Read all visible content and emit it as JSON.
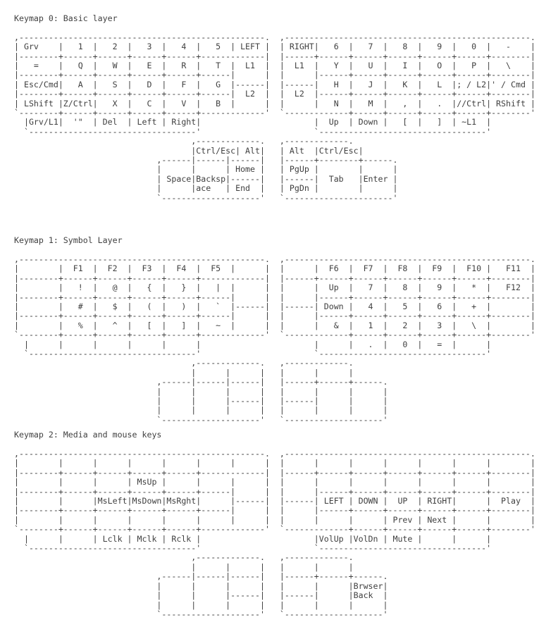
{
  "page": {
    "background_color": "#ffffff",
    "text_color": "#3f3f3f"
  },
  "keymaps": [
    {
      "title": "Keymap 0: Basic layer",
      "art_lines": [
        ",--------------------------------------------------.  ,--------------------------------------------------.",
        "| Grv    |   1  |   2  |   3  |   4  |   5  | LEFT |  | RIGHT|   6  |   7  |   8  |   9  |   0  |   -    |",
        "|--------+------+------+------+------+-------------|  |------+------+------+------+------+------+--------|",
        "|   =    |   Q  |   W  |   E  |   R  |   T  |  L1  |  |  L1  |   Y  |   U  |   I  |   O  |   P  |   \\    |",
        "|--------+------+------+------+------+------|      |  |      |------+------+------+------+------+--------|",
        "| Esc/Cmd|   A  |   S  |   D  |   F  |   G  |------|  |------|   H  |   J  |   K  |   L  |; / L2|' / Cmd |",
        "|--------+------+------+------+------+------|  L2  |  |  L2  |------+------+------+------+------+--------|",
        "| LShift |Z/Ctrl|   X  |   C  |   V  |   B  |      |  |      |   N  |   M  |   ,  |   .  |//Ctrl| RShift |",
        "`--------+------+------+------+------+-------------'  `-------------+------+------+------+------+--------'",
        "  |Grv/L1|  '\"  | Del  | Left | Right|                       |  Up  | Down |   [  |   ]  | ~L1  |",
        "  `----------------------------------'                       `----------------------------------'",
        "                                    ,-------------.   ,-------------.",
        "                                    |Ctrl/Esc| Alt|   | Alt  |Ctrl/Esc|",
        "                             ,------|------|------|   |------+--------+------.",
        "                             |      |      | Home |   | PgUp |        |      |",
        "                             | Space|Backsp|------|   |------|  Tab   |Enter |",
        "                             |      |ace   | End  |   | PgDn |        |      |",
        "                             `--------------------'   `----------------------'"
      ]
    },
    {
      "title": "Keymap 1: Symbol Layer",
      "art_lines": [
        ",--------------------------------------------------.  ,--------------------------------------------------.",
        "|        |  F1  |  F2  |  F3  |  F4  |  F5  |      |  |      |  F6  |  F7  |  F8  |  F9  |  F10 |   F11  |",
        "|--------+------+------+------+------+-------------|  |------+------+------+------+------+------+--------|",
        "|        |   !  |   @  |   {  |   }  |   |  |      |  |      |  Up  |   7  |   8  |   9  |   *  |   F12  |",
        "|--------+------+------+------+------+------|      |  |      |------+------+------+------+------+--------|",
        "|        |   #  |   $  |   (  |   )  |   `  |------|  |------| Down |   4  |   5  |   6  |   +  |        |",
        "|--------+------+------+------+------+------|      |  |      |------+------+------+------+------+--------|",
        "|        |   %  |   ^  |   [  |   ]  |   ~  |      |  |      |   &  |   1  |   2  |   3  |   \\  |        |",
        "`--------+------+------+------+------+-------------'  `-------------+------+------+------+------+--------'",
        "  |      |      |      |      |      |                       |      |   .  |   0  |   =  |      |",
        "  `----------------------------------'                       `----------------------------------'",
        "                                    ,-------------.   ,-------------.",
        "                                    |      |      |   |      |      |",
        "                             ,------|------|------|   |------+------+------.",
        "                             |      |      |      |   |      |      |      |",
        "                             |      |      |------|   |------|      |      |",
        "                             |      |      |      |   |      |      |      |",
        "                             `--------------------'   `--------------------'"
      ]
    },
    {
      "title": "Keymap 2: Media and mouse keys",
      "art_lines": [
        ",--------------------------------------------------.  ,--------------------------------------------------.",
        "|        |      |      |      |      |      |      |  |      |      |      |      |      |      |        |",
        "|--------+------+------+------+------+-------------|  |------+------+------+------+------+------+--------|",
        "|        |      |      | MsUp |      |      |      |  |      |      |      |      |      |      |        |",
        "|--------+------+------+------+------+------|      |  |      |------+------+------+------+------+--------|",
        "|        |      |MsLeft|MsDown|MsRght|      |------|  |------| LEFT | DOWN |  UP  | RIGHT|      |  Play  |",
        "|--------+------+------+------+------+------|      |  |      |------+------+------+------+------+--------|",
        "|        |      |      |      |      |      |      |  |      |      |      | Prev | Next |      |        |",
        "`--------+------+------+------+------+-------------'  `-------------+------+------+------+------+--------'",
        "  |      |      | Lclk | Mclk | Rclk |                       |VolUp |VolDn | Mute |      |      |",
        "  `----------------------------------'                       `----------------------------------'",
        "                                    ,-------------.   ,-------------.",
        "                                    |      |      |   |      |      |",
        "                             ,------|------|------|   |------+------+------.",
        "                             |      |      |      |   |      |      |Brwser|",
        "                             |      |      |------|   |------|      |Back  |",
        "                             |      |      |      |   |      |      |      |",
        "                             `--------------------'   `--------------------'"
      ]
    }
  ]
}
